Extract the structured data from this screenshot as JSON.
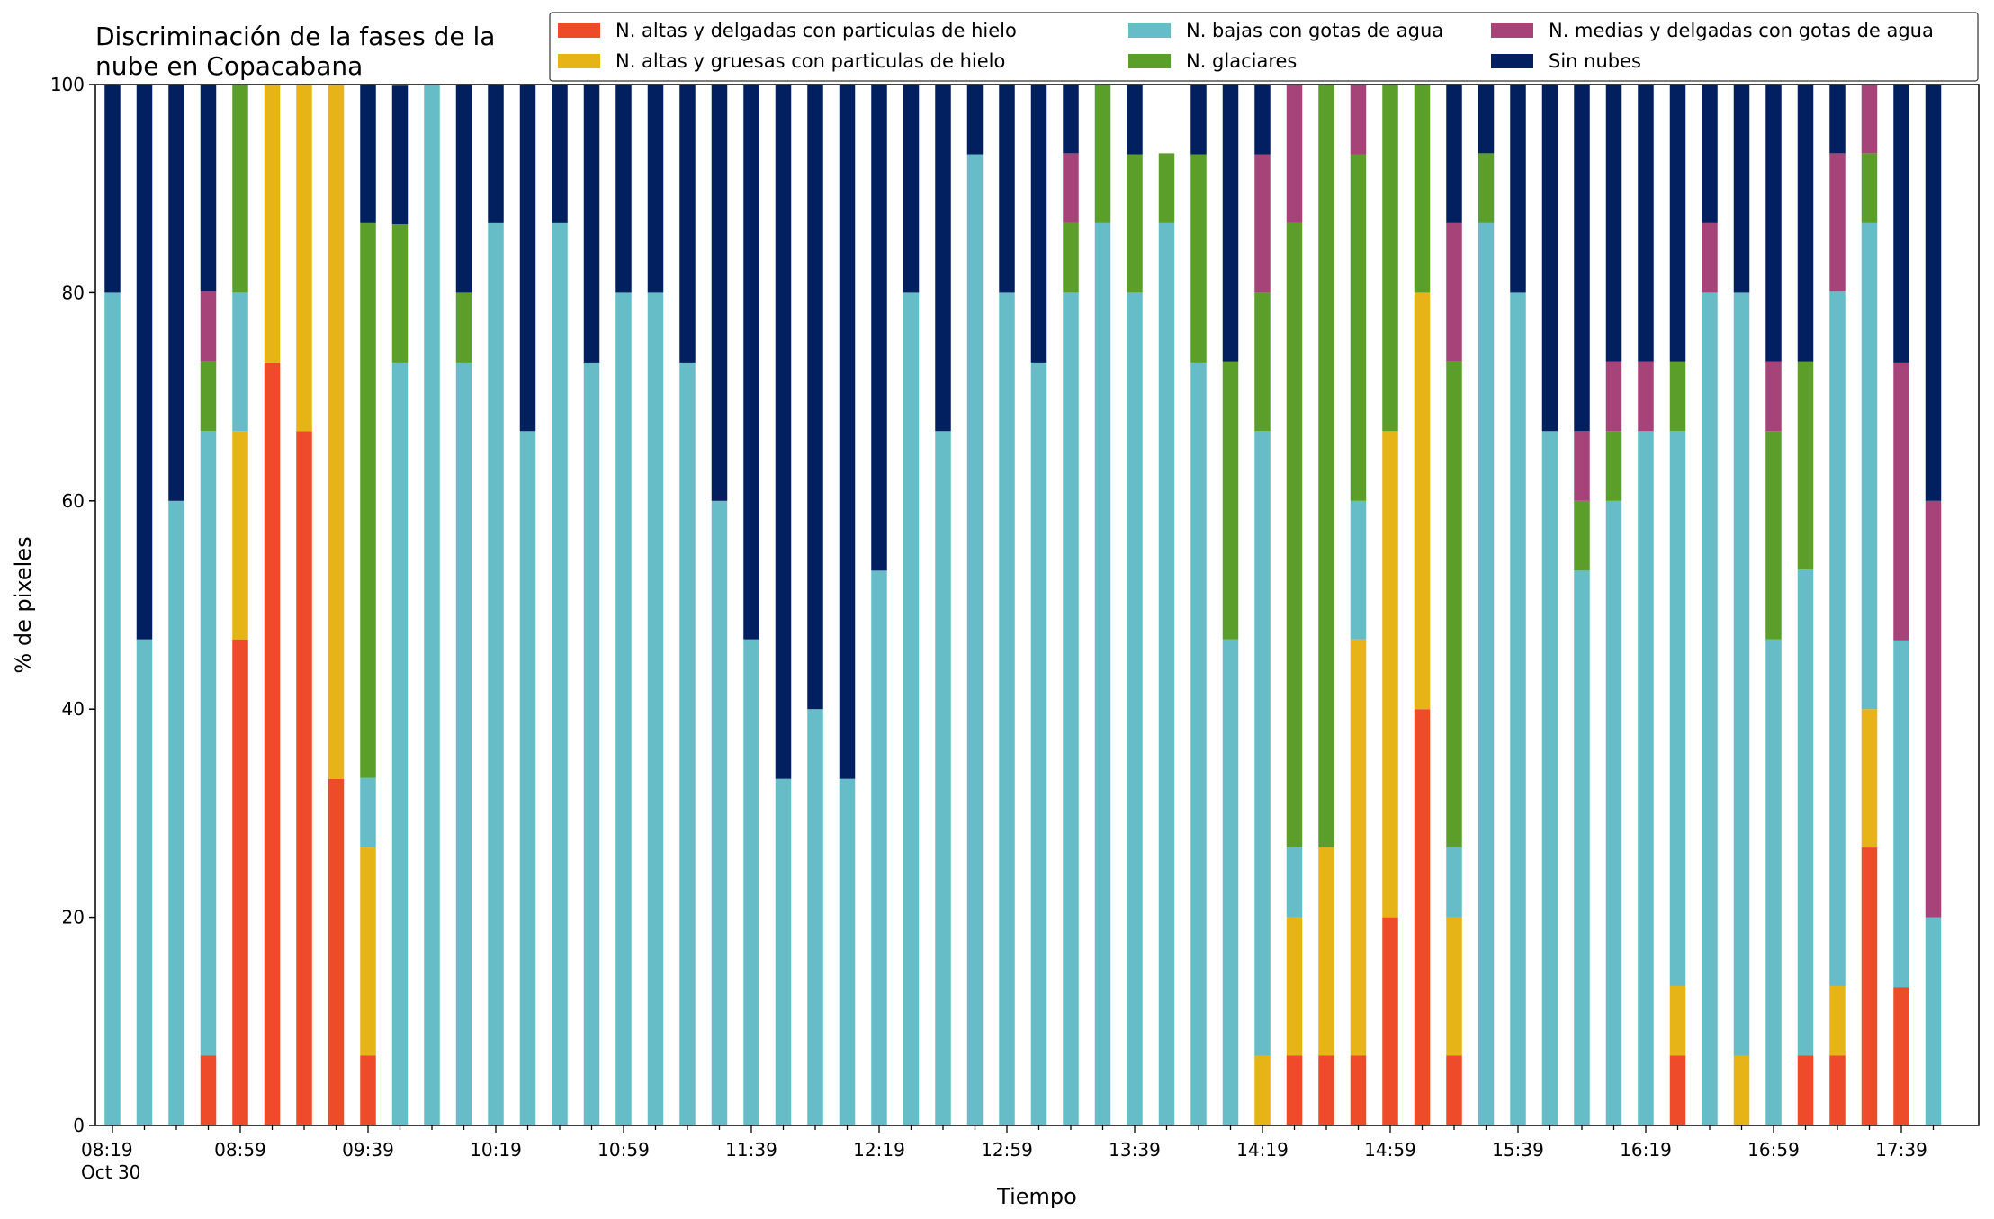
{
  "chart_data": {
    "type": "bar",
    "stacked": true,
    "title_lines": [
      "Discriminación de la fases de la",
      "nube en Copacabana"
    ],
    "xlabel": "Tiempo",
    "ylabel": "% de pixeles",
    "ylim": [
      0,
      100
    ],
    "yticks": [
      0,
      20,
      40,
      60,
      80,
      100
    ],
    "grid": false,
    "legend_position": "top",
    "x_tick_labels": [
      {
        "index": 0,
        "label": "08:19",
        "sub": "Oct 30"
      },
      {
        "index": 4,
        "label": "08:59"
      },
      {
        "index": 8,
        "label": "09:39"
      },
      {
        "index": 12,
        "label": "10:19"
      },
      {
        "index": 16,
        "label": "10:59"
      },
      {
        "index": 20,
        "label": "11:39"
      },
      {
        "index": 24,
        "label": "12:19"
      },
      {
        "index": 28,
        "label": "12:59"
      },
      {
        "index": 32,
        "label": "13:39"
      },
      {
        "index": 36,
        "label": "14:19"
      },
      {
        "index": 40,
        "label": "14:59"
      },
      {
        "index": 44,
        "label": "15:39"
      },
      {
        "index": 48,
        "label": "16:19"
      },
      {
        "index": 52,
        "label": "16:59"
      },
      {
        "index": 56,
        "label": "17:39"
      }
    ],
    "n_bars": 58,
    "series": [
      {
        "name": "N. altas y delgadas con particulas de hielo",
        "color": "#ee4b2b",
        "values": [
          0,
          0,
          0,
          6.7,
          46.7,
          73.3,
          66.7,
          33.3,
          6.7,
          0,
          0,
          0,
          0,
          0,
          0,
          0,
          0,
          0,
          0,
          0,
          0,
          0,
          0,
          0,
          0,
          0,
          0,
          0,
          0,
          0,
          0,
          0,
          0,
          0,
          0,
          0,
          0,
          6.7,
          6.7,
          6.7,
          20,
          40,
          6.7,
          0,
          0,
          0,
          0,
          0,
          0,
          6.7,
          0,
          0,
          0,
          6.7,
          6.7,
          26.7,
          13.3,
          0
        ]
      },
      {
        "name": "N. altas y gruesas con particulas de hielo",
        "color": "#e6b416",
        "values": [
          0,
          0,
          0,
          0,
          20,
          26.7,
          33.3,
          66.7,
          20,
          0,
          0,
          0,
          0,
          0,
          0,
          0,
          0,
          0,
          0,
          0,
          0,
          0,
          0,
          0,
          0,
          0,
          0,
          0,
          0,
          0,
          0,
          0,
          0,
          0,
          0,
          0,
          6.7,
          13.3,
          20,
          40,
          46.7,
          40,
          13.3,
          0,
          0,
          0,
          0,
          0,
          0,
          6.7,
          0,
          6.7,
          0,
          0,
          6.7,
          13.3,
          0,
          0
        ]
      },
      {
        "name": "N. bajas con gotas de agua",
        "color": "#66bdc8",
        "values": [
          80,
          46.7,
          60,
          60,
          13.3,
          0,
          0,
          0,
          6.7,
          73.3,
          100,
          73.3,
          86.7,
          66.7,
          86.7,
          73.3,
          80,
          80,
          73.3,
          60,
          46.7,
          33.3,
          40,
          33.3,
          53.3,
          80,
          66.7,
          93.3,
          80,
          73.3,
          80,
          86.7,
          80,
          86.7,
          73.3,
          46.7,
          60,
          6.7,
          0,
          13.3,
          0,
          0,
          6.7,
          86.7,
          80,
          66.7,
          53.3,
          60,
          66.7,
          53.3,
          80,
          73.3,
          46.7,
          46.7,
          66.7,
          46.7,
          33.3,
          20
        ]
      },
      {
        "name": "N. glaciares",
        "color": "#5b9e2a",
        "values": [
          0,
          0,
          0,
          6.7,
          20,
          0,
          0,
          0,
          53.3,
          13.3,
          0,
          6.7,
          0,
          0,
          0,
          0,
          0,
          0,
          0,
          0,
          0,
          0,
          0,
          0,
          0,
          0,
          0,
          0,
          0,
          0,
          6.7,
          13.3,
          13.3,
          6.7,
          20,
          26.7,
          13.3,
          60,
          73.3,
          33.3,
          33.3,
          20,
          46.7,
          6.7,
          0,
          0,
          6.7,
          6.7,
          0,
          6.7,
          0,
          0,
          20,
          20,
          0,
          6.7,
          0,
          0
        ]
      },
      {
        "name": "N. medias y delgadas con gotas de agua",
        "color": "#a6447a",
        "values": [
          0,
          0,
          0,
          6.7,
          0,
          0,
          0,
          0,
          0,
          0,
          0,
          0,
          0,
          0,
          0,
          0,
          0,
          0,
          0,
          0,
          0,
          0,
          0,
          0,
          0,
          0,
          0,
          0,
          0,
          0,
          6.7,
          0,
          0,
          0,
          0,
          0,
          13.3,
          13.3,
          0,
          6.7,
          0,
          0,
          13.3,
          0,
          0,
          0,
          6.7,
          6.7,
          6.7,
          0,
          6.7,
          0,
          6.7,
          0,
          13.3,
          6.7,
          26.7,
          40
        ]
      },
      {
        "name": "Sin nubes",
        "color": "#02205f",
        "values": [
          20,
          53.3,
          40,
          20,
          0,
          0,
          0,
          0,
          13.3,
          13.3,
          0,
          20,
          13.3,
          33.3,
          13.3,
          26.7,
          20,
          20,
          26.7,
          40,
          53.3,
          66.7,
          60,
          66.7,
          46.7,
          20,
          33.3,
          6.7,
          20,
          26.7,
          6.7,
          0,
          6.7,
          0,
          6.7,
          26.7,
          6.7,
          0,
          0,
          0,
          0,
          0,
          13.3,
          6.7,
          20,
          33.3,
          33.3,
          26.7,
          26.7,
          26.7,
          13.3,
          20,
          26.7,
          26.7,
          6.7,
          0,
          26.7,
          40
        ]
      }
    ]
  }
}
